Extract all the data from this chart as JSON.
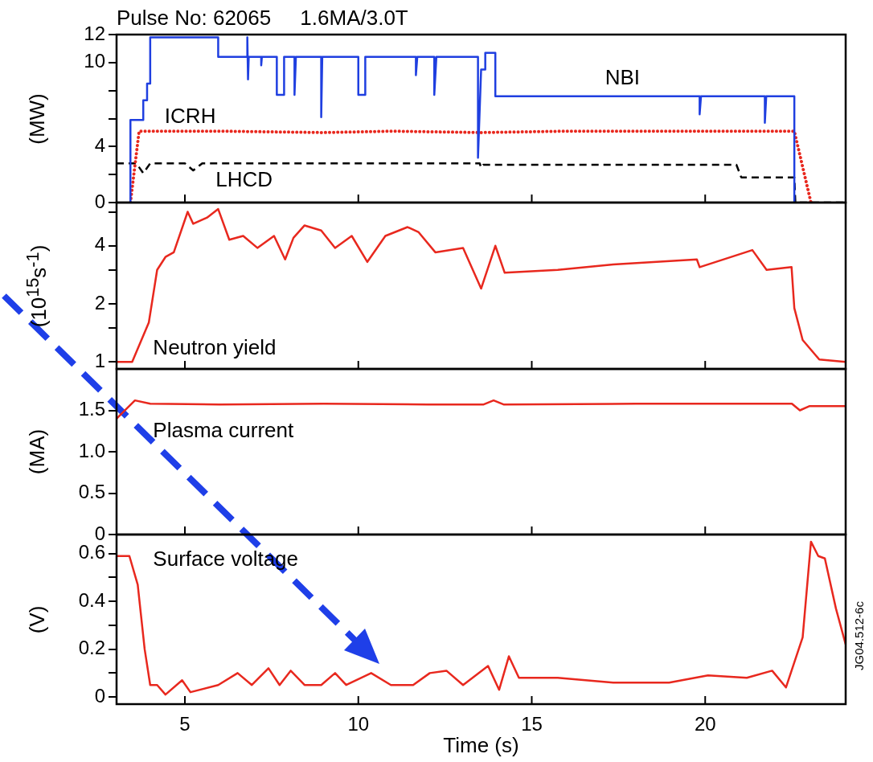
{
  "chart_data": [
    {
      "type": "line",
      "title": "Pulse No: 62065     1.6MA/3.0T",
      "ylabel": "(MW)",
      "xlim": [
        3.03,
        24.05
      ],
      "xticks": [
        5,
        10,
        15,
        20
      ],
      "ylim": [
        0,
        12
      ],
      "yticks": [
        0,
        {
          "value": 2,
          "label": null
        },
        4,
        {
          "value": 6,
          "label": null
        },
        {
          "value": 8,
          "label": null
        },
        10,
        12
      ],
      "tick_labels": "y",
      "series": [
        {
          "name": "NBI",
          "color": "#1f3fe0",
          "line_style": "solid",
          "x": [
            3.43,
            3.43,
            3.8,
            3.8,
            3.91,
            3.91,
            4.0,
            4.0,
            5.96,
            5.96,
            6.8,
            6.8,
            6.82,
            6.84,
            7.2,
            7.2,
            7.22,
            7.65,
            7.65,
            7.86,
            7.86,
            8.16,
            8.16,
            8.2,
            8.93,
            8.93,
            8.96,
            10.0,
            10.0,
            10.2,
            10.2,
            11.66,
            11.66,
            11.7,
            12.19,
            12.19,
            12.25,
            13.45,
            13.45,
            13.54,
            13.66,
            13.66,
            13.95,
            13.95,
            19.84,
            19.84,
            19.88,
            21.72,
            21.72,
            21.76,
            22.57,
            22.57
          ],
          "values": [
            0,
            5.9,
            5.9,
            7.3,
            7.3,
            8.5,
            8.5,
            11.8,
            11.8,
            10.4,
            10.4,
            11.8,
            8.8,
            10.4,
            10.4,
            9.8,
            10.4,
            10.4,
            7.7,
            7.7,
            10.4,
            10.4,
            7.7,
            10.4,
            10.4,
            6.1,
            10.4,
            10.4,
            7.7,
            7.7,
            10.4,
            10.4,
            9.1,
            10.4,
            10.4,
            7.7,
            10.4,
            10.4,
            3.2,
            9.5,
            9.5,
            10.7,
            10.7,
            7.6,
            7.6,
            6.3,
            7.6,
            7.6,
            5.7,
            7.6,
            7.6,
            0
          ]
        },
        {
          "name": "ICRH",
          "color": "#e8281e",
          "line_style": "dotted",
          "x": [
            3.43,
            3.68,
            6,
            9,
            11,
            13.5,
            16,
            19,
            22.57,
            23.05
          ],
          "values": [
            0,
            5.1,
            5.1,
            5.0,
            5.1,
            5.0,
            5.1,
            5.1,
            5.1,
            0
          ]
        },
        {
          "name": "LHCD",
          "color": "#000000",
          "line_style": "dashed",
          "x": [
            3.03,
            3.6,
            3.8,
            4.0,
            5.0,
            5.24,
            5.5,
            13.5,
            13.54,
            13.6,
            20.9,
            21.04,
            22.57,
            22.6,
            24.05
          ],
          "values": [
            2.8,
            2.8,
            2.1,
            2.8,
            2.8,
            2.3,
            2.8,
            2.8,
            2.5,
            2.7,
            2.7,
            1.8,
            1.8,
            0,
            0
          ]
        }
      ]
    },
    {
      "type": "line",
      "ylabel": "(10$^{15}$s$^{-1}$)",
      "log": true,
      "xlim": [
        3.03,
        24.05
      ],
      "xticks": [
        5,
        10,
        15,
        20
      ],
      "ylim": [
        0.92,
        6.7
      ],
      "yticks": [
        1,
        {
          "value": 1.5,
          "label": null
        },
        2,
        {
          "value": 3,
          "label": null
        },
        4,
        {
          "value": 6,
          "label": null
        }
      ],
      "tick_labels": "y",
      "series": [
        {
          "name": "Neutron yield",
          "color": "#e8281e",
          "line_style": "solid",
          "x": [
            3.03,
            3.48,
            3.96,
            4.2,
            4.44,
            4.68,
            5.08,
            5.24,
            5.64,
            5.96,
            6.28,
            6.68,
            7.09,
            7.57,
            7.89,
            8.13,
            8.45,
            8.93,
            9.33,
            9.81,
            10.26,
            10.78,
            11.42,
            11.74,
            12.22,
            13.02,
            13.54,
            13.95,
            14.22,
            15.75,
            17.35,
            19.76,
            19.84,
            21.36,
            21.77,
            22.49,
            22.57,
            22.81,
            23.29,
            24.05
          ],
          "values": [
            1.0,
            1.0,
            1.6,
            3.0,
            3.5,
            3.7,
            6.0,
            5.2,
            5.6,
            6.2,
            4.3,
            4.5,
            3.9,
            4.5,
            3.4,
            4.4,
            5.1,
            4.8,
            3.9,
            4.5,
            3.3,
            4.5,
            5.0,
            4.7,
            3.7,
            3.9,
            2.4,
            4.0,
            2.9,
            3.0,
            3.2,
            3.4,
            3.1,
            3.8,
            3.0,
            3.1,
            1.9,
            1.3,
            1.03,
            1.0
          ]
        }
      ]
    },
    {
      "type": "line",
      "ylabel": "(MA)",
      "xlim": [
        3.03,
        24.05
      ],
      "xticks": [
        5,
        10,
        15,
        20
      ],
      "ylim": [
        0,
        2.0
      ],
      "yticks": [
        0,
        0.5,
        {
          "value": 1,
          "label": "1.0"
        },
        1.5
      ],
      "tick_labels": "y",
      "series": [
        {
          "name": "Plasma current",
          "color": "#e8281e",
          "line_style": "solid",
          "x": [
            3.03,
            3.56,
            4.0,
            6,
            9,
            12,
            13.6,
            13.9,
            14.2,
            18,
            22.5,
            22.73,
            23.0,
            24.05
          ],
          "values": [
            1.4,
            1.62,
            1.58,
            1.57,
            1.58,
            1.57,
            1.57,
            1.62,
            1.57,
            1.58,
            1.58,
            1.5,
            1.55,
            1.55
          ]
        }
      ]
    },
    {
      "type": "line",
      "ylabel": "(V)",
      "xlabel": "Time (s)",
      "xlim": [
        3.03,
        24.05
      ],
      "xticks": [
        5,
        10,
        15,
        20
      ],
      "ylim": [
        -0.03,
        0.68
      ],
      "yticks": [
        0,
        {
          "value": 0.1,
          "label": null
        },
        0.2,
        {
          "value": 0.3,
          "label": null
        },
        0.4,
        {
          "value": 0.5,
          "label": null
        },
        0.6
      ],
      "annotations": [
        "JG04.512-6c"
      ],
      "series": [
        {
          "name": "Surface voltage",
          "color": "#e8281e",
          "line_style": "solid",
          "x": [
            3.03,
            3.4,
            3.64,
            3.84,
            4.0,
            4.2,
            4.44,
            4.92,
            5.16,
            5.96,
            6.52,
            6.93,
            7.41,
            7.73,
            8.05,
            8.45,
            8.93,
            9.33,
            9.65,
            10.37,
            10.94,
            11.58,
            12.06,
            12.54,
            13.02,
            13.74,
            14.06,
            14.34,
            14.63,
            15.75,
            17.35,
            18.96,
            20.08,
            21.2,
            21.93,
            22.33,
            22.81,
            23.05,
            23.26,
            23.45,
            23.77,
            24.05
          ],
          "values": [
            0.59,
            0.59,
            0.47,
            0.2,
            0.05,
            0.05,
            0.01,
            0.07,
            0.02,
            0.05,
            0.1,
            0.05,
            0.12,
            0.05,
            0.11,
            0.05,
            0.05,
            0.1,
            0.05,
            0.1,
            0.05,
            0.05,
            0.1,
            0.11,
            0.05,
            0.13,
            0.03,
            0.17,
            0.08,
            0.08,
            0.06,
            0.06,
            0.09,
            0.08,
            0.11,
            0.04,
            0.25,
            0.65,
            0.59,
            0.58,
            0.37,
            0.22
          ]
        }
      ]
    }
  ]
}
